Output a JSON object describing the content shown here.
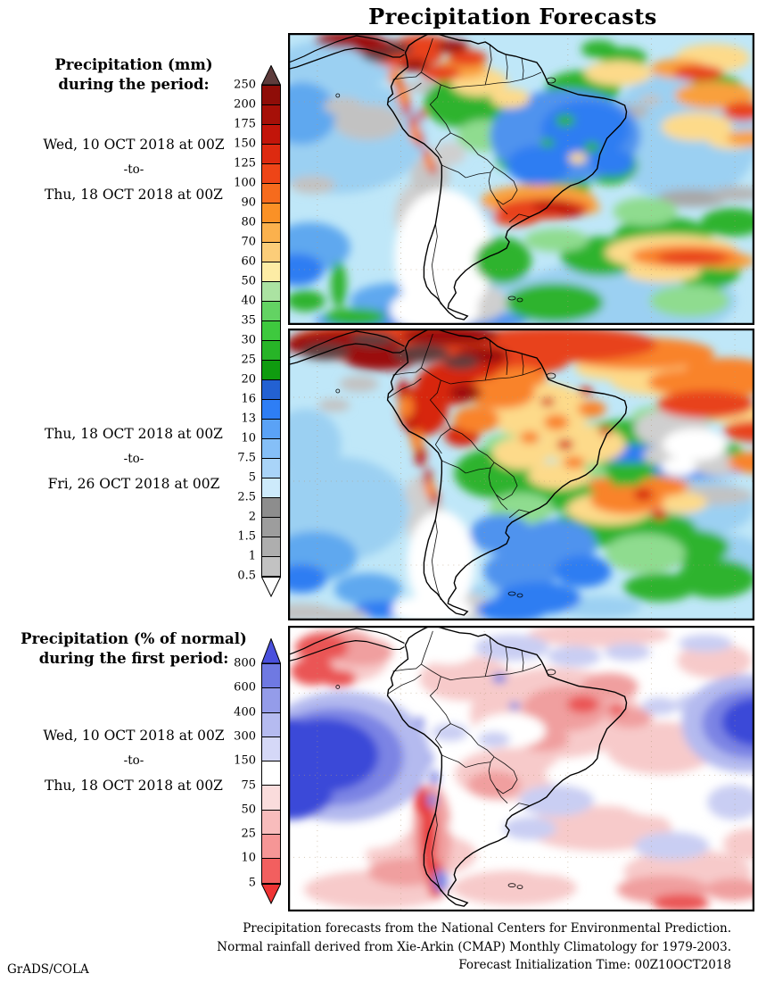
{
  "title": "Precipitation Forecasts",
  "brand": "GrADS/COLA",
  "panels": {
    "mm_period1": {
      "label1": "Precipitation (mm)",
      "label2": "during the period:",
      "from": "Wed, 10 OCT 2018 at 00Z",
      "sep": "-to-",
      "to": "Thu, 18 OCT 2018 at 00Z"
    },
    "mm_period2": {
      "from": "Thu, 18 OCT 2018 at 00Z",
      "sep": "-to-",
      "to": "Fri, 26 OCT 2018 at 00Z"
    },
    "pct_period1": {
      "label1": "Precipitation (% of normal)",
      "label2": "during the first period:",
      "from": "Wed, 10 OCT 2018 at 00Z",
      "sep": "-to-",
      "to": "Thu, 18 OCT 2018 at 00Z"
    }
  },
  "colorbar_mm": {
    "ticks": [
      "250",
      "200",
      "175",
      "150",
      "125",
      "100",
      "90",
      "80",
      "70",
      "60",
      "50",
      "40",
      "35",
      "30",
      "25",
      "20",
      "16",
      "13",
      "10",
      "7.5",
      "5",
      "2.5",
      "2",
      "1.5",
      "1",
      "0.5"
    ],
    "colors": [
      "#8f0d08",
      "#a61008",
      "#c2150a",
      "#dd2a10",
      "#ee4517",
      "#f66b1d",
      "#fa9126",
      "#fbb14d",
      "#fccd79",
      "#fdeca5",
      "#abe3a2",
      "#63d363",
      "#3ec93e",
      "#27b427",
      "#0f9b0f",
      "#2361d2",
      "#2e7ef5",
      "#5aa2f6",
      "#85bff7",
      "#a9d4f8",
      "#cdeafb",
      "#8d8d8d",
      "#9d9d9d",
      "#aeaeae",
      "#c2c2c2"
    ],
    "top_color": "#5e3c3c",
    "bottom_color": "#ffffff"
  },
  "colorbar_pct": {
    "ticks": [
      "800",
      "600",
      "400",
      "300",
      "150",
      "75",
      "50",
      "25",
      "10",
      "5"
    ],
    "colors": [
      "#6f79e2",
      "#949ce9",
      "#b5bbf0",
      "#d5d8f7",
      "#ffffff",
      "#fadcdc",
      "#f8bcbc",
      "#f69696",
      "#f25f5f"
    ],
    "top_color": "#4a50dd",
    "bottom_color": "#ef3434"
  },
  "footer": {
    "line1": "Precipitation forecasts from the National Centers for Environmental Prediction.",
    "line2": "Normal rainfall derived from Xie-Arkin (CMAP) Monthly Climatology for 1979-2003.",
    "line3": "Forecast Initialization Time: 00Z10OCT2018"
  },
  "chart_data": [
    {
      "type": "heatmap",
      "title": "Precipitation (mm), Wed 10 OCT 2018 00Z to Thu 18 OCT 2018 00Z",
      "region": "South America",
      "units": "mm",
      "scale_levels": [
        0.5,
        1,
        1.5,
        2,
        2.5,
        5,
        7.5,
        10,
        13,
        16,
        20,
        25,
        30,
        35,
        40,
        50,
        60,
        70,
        80,
        90,
        100,
        125,
        150,
        175,
        200,
        250
      ],
      "legend_position": "left"
    },
    {
      "type": "heatmap",
      "title": "Precipitation (mm), Thu 18 OCT 2018 00Z to Fri 26 OCT 2018 00Z",
      "region": "South America",
      "units": "mm",
      "scale_levels": [
        0.5,
        1,
        1.5,
        2,
        2.5,
        5,
        7.5,
        10,
        13,
        16,
        20,
        25,
        30,
        35,
        40,
        50,
        60,
        70,
        80,
        90,
        100,
        125,
        150,
        175,
        200,
        250
      ],
      "legend_position": "left"
    },
    {
      "type": "heatmap",
      "title": "Precipitation (% of normal), Wed 10 OCT 2018 00Z to Thu 18 OCT 2018 00Z",
      "region": "South America",
      "units": "% of normal",
      "scale_levels": [
        5,
        10,
        25,
        50,
        75,
        150,
        300,
        400,
        600,
        800
      ],
      "legend_position": "left"
    }
  ]
}
